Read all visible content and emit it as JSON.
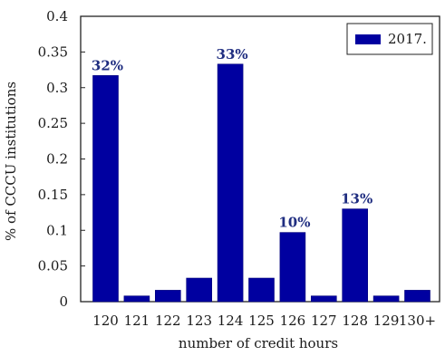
{
  "chart_data": {
    "type": "bar",
    "categories": [
      "120",
      "121",
      "122",
      "123",
      "124",
      "125",
      "126",
      "127",
      "128",
      "129",
      "130+"
    ],
    "series": [
      {
        "name": "2017.",
        "values": [
          0.317,
          0.008,
          0.016,
          0.033,
          0.333,
          0.033,
          0.097,
          0.008,
          0.13,
          0.008,
          0.016
        ]
      }
    ],
    "data_labels": [
      {
        "category": "120",
        "text": "32%"
      },
      {
        "category": "124",
        "text": "33%"
      },
      {
        "category": "126",
        "text": "10%"
      },
      {
        "category": "128",
        "text": "13%"
      }
    ],
    "title": "",
    "xlabel": "number of credit hours",
    "ylabel": "% of CCCU institutions",
    "ylim": [
      0,
      0.4
    ],
    "yticks": [
      "0",
      "0.05",
      "0.1",
      "0.15",
      "0.2",
      "0.25",
      "0.3",
      "0.35",
      "0.4"
    ],
    "ytick_values": [
      0,
      0.05,
      0.1,
      0.15,
      0.2,
      0.25,
      0.3,
      0.35,
      0.4
    ],
    "grid": false,
    "legend_position": "top-right",
    "colors": {
      "bar": "#0000a0",
      "bar_edge": "#00007a",
      "label": "#1f2d80",
      "axis": "#222222"
    }
  }
}
